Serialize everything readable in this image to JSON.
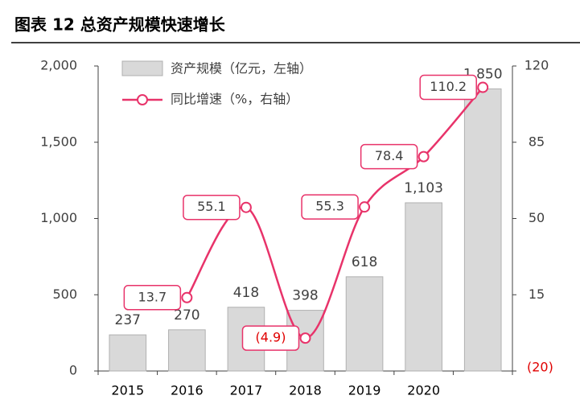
{
  "chart_data": {
    "type": "bar-line",
    "title": "图表 12 总资产规模快速增长",
    "categories": [
      "2015",
      "2016",
      "2017",
      "2018",
      "2019",
      "2020",
      null
    ],
    "series": [
      {
        "name": "资产规模（亿元，左轴）",
        "type": "bar",
        "color": "#d9d9d9",
        "values": [
          237,
          270,
          418,
          398,
          618,
          1103,
          1850
        ],
        "value_labels": [
          "237",
          "270",
          "418",
          "398",
          "618",
          "1,103",
          "1,850"
        ]
      },
      {
        "name": "同比增速（%，右轴）",
        "type": "line",
        "axis": "y2",
        "color": "#e8336a",
        "values": [
          null,
          13.7,
          55.1,
          -4.9,
          55.3,
          78.4,
          110.2
        ],
        "value_labels": [
          null,
          "13.7",
          "55.1",
          "(4.9)",
          "55.3",
          "78.4",
          "110.2"
        ]
      }
    ],
    "ylim": [
      0,
      2000
    ],
    "yticks": [
      0,
      {
        "value": 500,
        "label": "500"
      },
      {
        "value": 1000,
        "label": "1,000"
      },
      {
        "value": 1500,
        "label": "1,500"
      },
      {
        "value": 2000,
        "label": "2,000"
      }
    ],
    "y2lim": [
      -20,
      120
    ],
    "y2ticks": [
      {
        "value": -20,
        "label": "(20)"
      },
      15,
      50,
      85,
      120
    ],
    "legend": "top-left",
    "grid": false
  }
}
